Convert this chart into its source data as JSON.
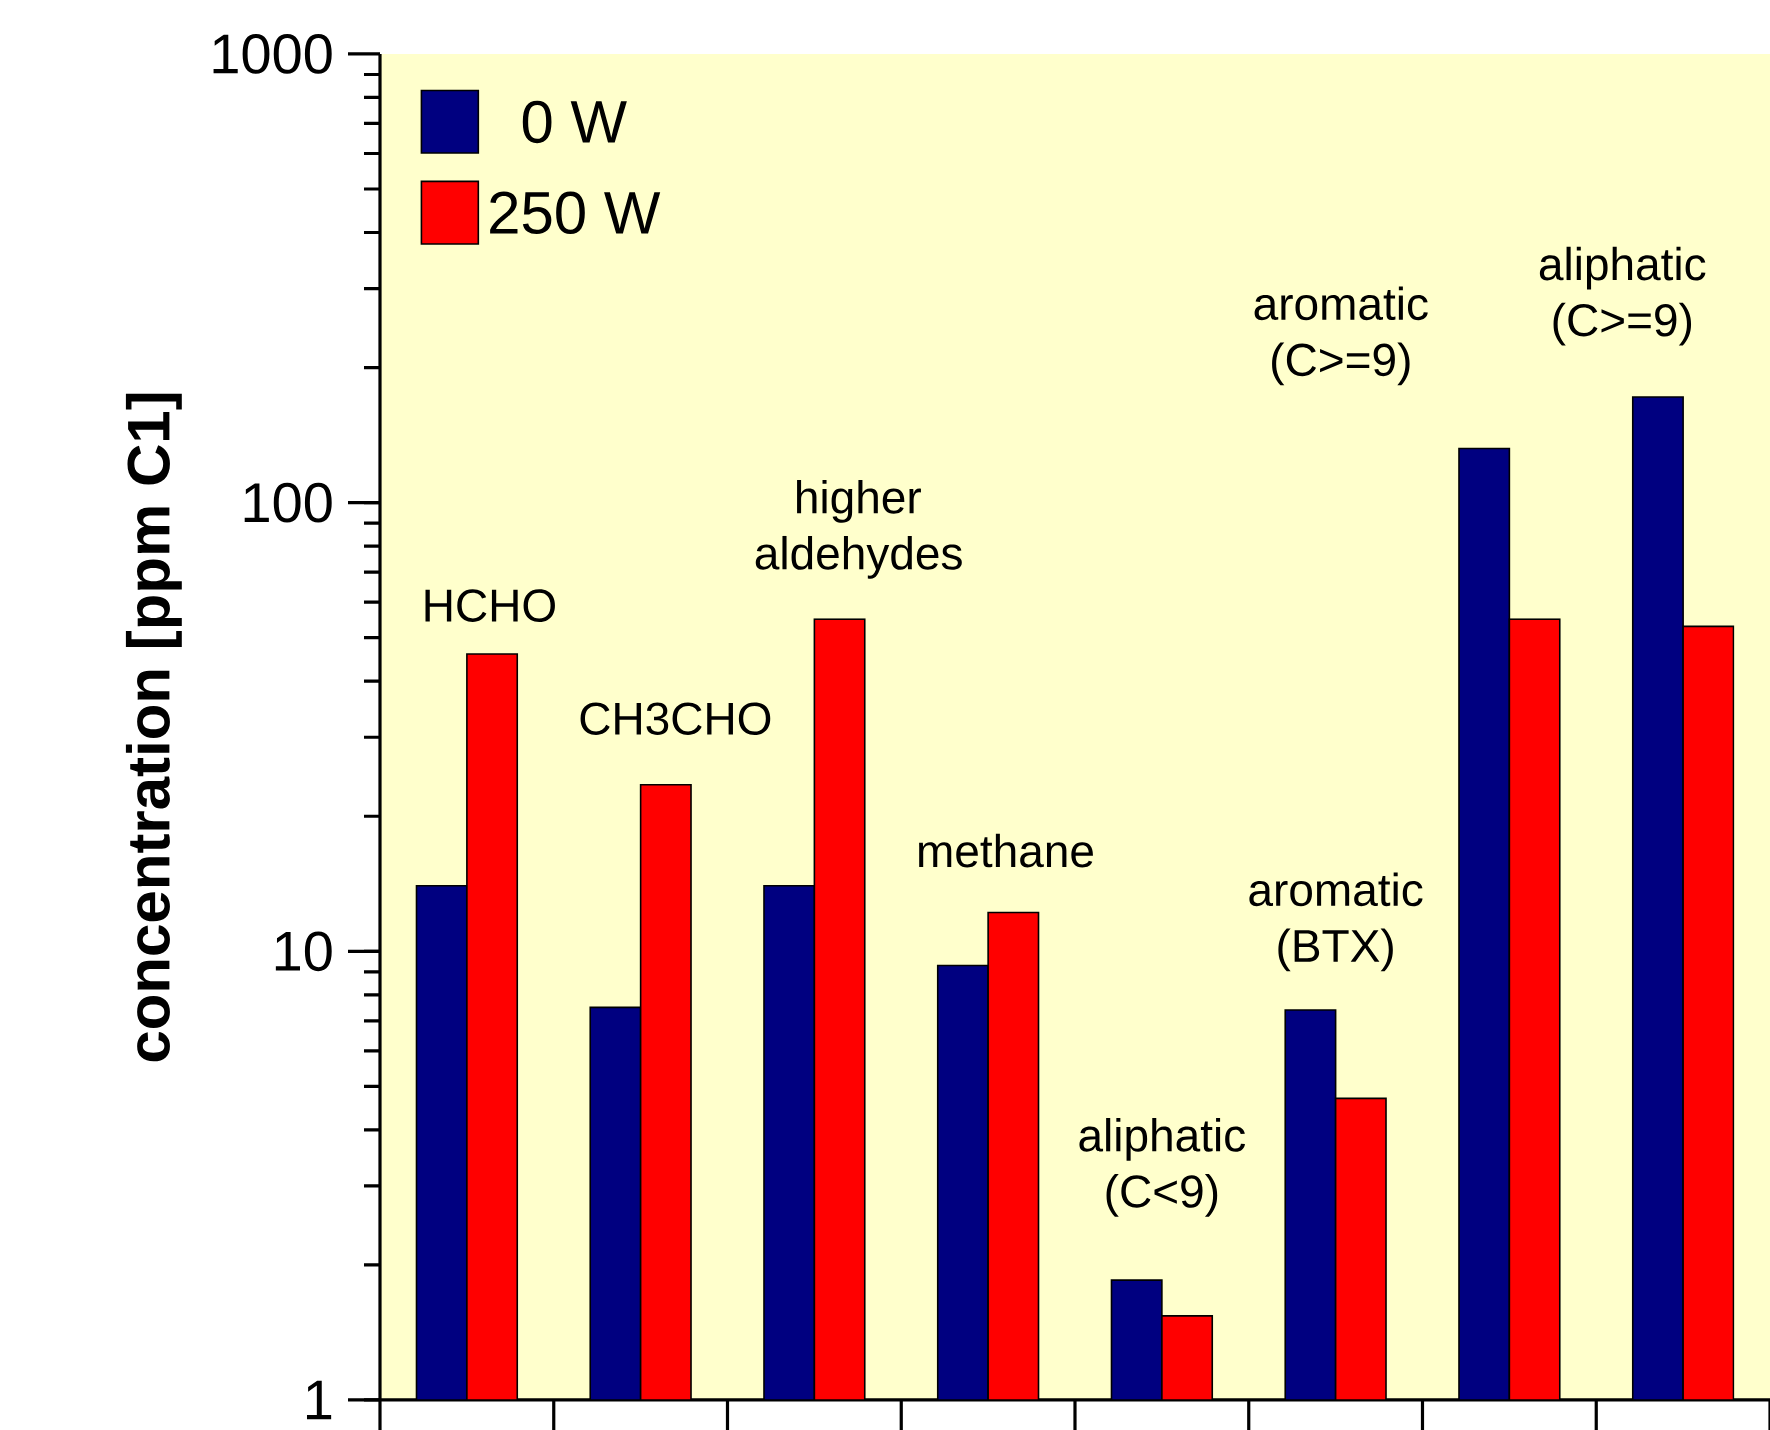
{
  "chart_data": {
    "type": "bar",
    "ylabel": "concentration [ppm C1]",
    "categories": [
      null,
      null,
      null,
      null,
      null,
      null,
      null,
      null
    ],
    "series": [
      {
        "name": "0 W",
        "color": "#000080",
        "values": [
          14,
          7.5,
          14,
          9.3,
          1.85,
          7.4,
          132,
          172
        ]
      },
      {
        "name": "250 W",
        "color": "#ff0000",
        "values": [
          46,
          23.5,
          55,
          12.2,
          1.54,
          4.7,
          55,
          53
        ]
      }
    ],
    "annotations": [
      "HCHO",
      "CH3CHO",
      "higher aldehydes",
      "methane",
      "aliphatic (C<9)",
      "aromatic (BTX)",
      "aromatic (C>=9)",
      "aliphatic (C>=9)"
    ],
    "log": true,
    "ylim": [
      1,
      1000
    ],
    "yticks": [
      1,
      10,
      100,
      1000
    ],
    "legend": "top left",
    "tick_labels": "y",
    "grid": false
  }
}
